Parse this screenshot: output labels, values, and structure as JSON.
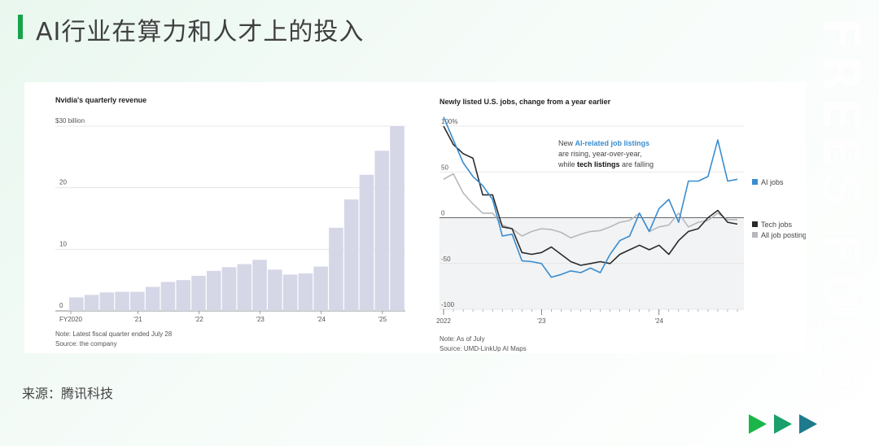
{
  "page_title": "AI行业在算力和人才上的投入",
  "watermark": "FREES FUND",
  "source": "来源：腾讯科技",
  "colors": {
    "accent": "#17a34a",
    "bar": "#d5d7e7",
    "ai_jobs": "#3a8dcf",
    "tech_jobs": "#2b2b2b",
    "all_postings": "#b8b8bd"
  },
  "chart_data": [
    {
      "type": "bar",
      "title": "Nvidia's quarterly revenue",
      "unit_label": "$30 billion",
      "ylim": [
        0,
        30
      ],
      "y_ticks": [
        "0",
        "10",
        "20"
      ],
      "x_tick_labels": [
        "FY2020",
        "'21",
        "'22",
        "'23",
        "'24",
        "'25"
      ],
      "values": [
        2.2,
        2.6,
        3.0,
        3.1,
        3.1,
        3.9,
        4.7,
        5.0,
        5.7,
        6.5,
        7.1,
        7.6,
        8.3,
        6.7,
        5.9,
        6.1,
        7.2,
        13.5,
        18.1,
        22.1,
        26.0,
        30.0
      ],
      "notes": [
        "Note: Latest fiscal quarter ended July 28",
        "Source: the company"
      ]
    },
    {
      "type": "line",
      "title": "Newly listed U.S. jobs, change from a year earlier",
      "y_ticks": [
        "100%",
        "50",
        "0",
        "-50",
        "-100"
      ],
      "ylim": [
        -100,
        110
      ],
      "x_tick_labels": [
        "2022",
        "'23",
        "'24"
      ],
      "annotation": {
        "line1_a": "New ",
        "line1_b": "AI-related job listings",
        "line2": "are rising, year-over-year,",
        "line3_a": "while ",
        "line3_b": "tech listings",
        "line3_c": " are falling"
      },
      "series": [
        {
          "name": "AI jobs",
          "values": [
            110,
            85,
            60,
            45,
            35,
            20,
            -20,
            -18,
            -47,
            -48,
            -50,
            -65,
            -62,
            -58,
            -60,
            -55,
            -60,
            -40,
            -25,
            -20,
            5,
            -15,
            10,
            20,
            -5,
            40,
            40,
            45,
            85,
            40,
            42
          ]
        },
        {
          "name": "Tech jobs",
          "values": [
            100,
            80,
            70,
            65,
            25,
            25,
            -10,
            -12,
            -38,
            -40,
            -38,
            -32,
            -40,
            -48,
            -52,
            -50,
            -48,
            -50,
            -40,
            -35,
            -30,
            -35,
            -30,
            -40,
            -25,
            -15,
            -12,
            0,
            8,
            -5,
            -7
          ]
        },
        {
          "name": "All job postings",
          "values": [
            42,
            48,
            27,
            15,
            5,
            5,
            -8,
            -12,
            -20,
            -15,
            -12,
            -13,
            -16,
            -22,
            -18,
            -15,
            -14,
            -10,
            -5,
            -3,
            5,
            -15,
            -10,
            -8,
            5,
            -10,
            -5,
            -3,
            5,
            -2,
            -2
          ]
        }
      ],
      "notes": [
        "Note: As of July",
        "Source: UMD-LinkUp AI Maps"
      ]
    }
  ]
}
